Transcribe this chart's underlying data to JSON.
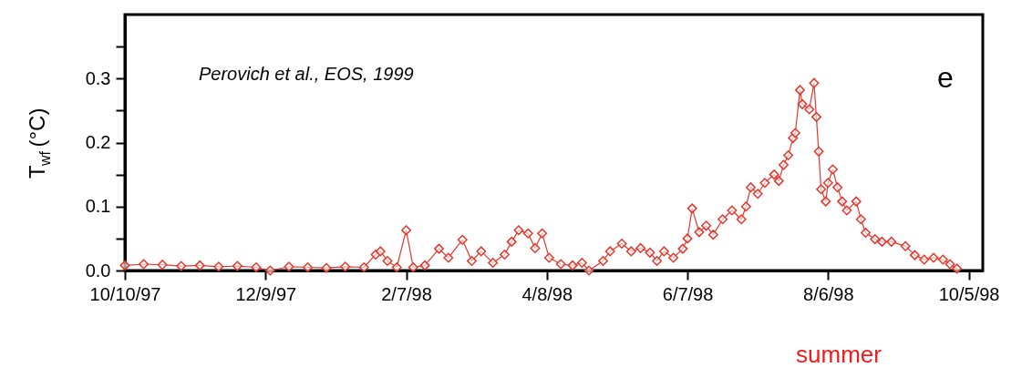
{
  "chart_data": {
    "type": "line",
    "marker": "diamond",
    "line_style": "solid",
    "grid": false,
    "ylabel": "T$_{wf}$ (°C)",
    "annotations": [
      "Perovich et al., EOS, 1999",
      "e",
      "summer"
    ],
    "xlim": [
      "1997-10-10",
      "1998-10-11"
    ],
    "xticks": [
      {
        "value": "1997-10-10",
        "label": "10/10/97"
      },
      {
        "value": "1997-12-09",
        "label": "12/9/97"
      },
      {
        "value": "1998-02-07",
        "label": "2/7/98"
      },
      {
        "value": "1998-04-08",
        "label": "4/8/98"
      },
      {
        "value": "1998-06-07",
        "label": "6/7/98"
      },
      {
        "value": "1998-08-06",
        "label": "8/6/98"
      },
      {
        "value": "1998-10-05",
        "label": "10/5/98"
      }
    ],
    "ylim": [
      0,
      0.4
    ],
    "yticks": [
      {
        "value": 0,
        "label": "0.0"
      },
      {
        "value": 0.05,
        "label": null
      },
      0.1,
      {
        "value": 0.15,
        "label": null
      },
      0.2,
      {
        "value": 0.25,
        "label": null
      },
      0.3,
      {
        "value": 0.35,
        "label": null
      }
    ],
    "x": [
      "1997-10-10",
      "1997-10-18",
      "1997-10-26",
      "1997-11-03",
      "1997-11-11",
      "1997-11-19",
      "1997-11-27",
      "1997-12-05",
      "1997-12-11",
      "1997-12-19",
      "1997-12-27",
      "1998-01-04",
      "1998-01-12",
      "1998-01-20",
      "1998-01-25",
      "1998-01-27",
      "1998-01-30",
      "1998-02-03",
      "1998-02-07",
      "1998-02-10",
      "1998-02-15",
      "1998-02-21",
      "1998-02-25",
      "1998-03-03",
      "1998-03-07",
      "1998-03-11",
      "1998-03-16",
      "1998-03-21",
      "1998-03-24",
      "1998-03-27",
      "1998-03-31",
      "1998-04-03",
      "1998-04-06",
      "1998-04-09",
      "1998-04-14",
      "1998-04-19",
      "1998-04-23",
      "1998-04-26",
      "1998-05-02",
      "1998-05-05",
      "1998-05-10",
      "1998-05-14",
      "1998-05-18",
      "1998-05-22",
      "1998-05-25",
      "1998-05-28",
      "1998-06-01",
      "1998-06-05",
      "1998-06-07",
      "1998-06-09",
      "1998-06-12",
      "1998-06-15",
      "1998-06-18",
      "1998-06-22",
      "1998-06-26",
      "1998-06-30",
      "1998-07-02",
      "1998-07-04",
      "1998-07-07",
      "1998-07-10",
      "1998-07-14",
      "1998-07-16",
      "1998-07-18",
      "1998-07-20",
      "1998-07-22",
      "1998-07-23",
      "1998-07-25",
      "1998-07-26",
      "1998-07-29",
      "1998-07-31",
      "1998-08-01",
      "1998-08-02",
      "1998-08-03",
      "1998-08-05",
      "1998-08-06",
      "1998-08-08",
      "1998-08-10",
      "1998-08-12",
      "1998-08-14",
      "1998-08-18",
      "1998-08-20",
      "1998-08-22",
      "1998-08-26",
      "1998-08-29",
      "1998-09-02",
      "1998-09-08",
      "1998-09-12",
      "1998-09-16",
      "1998-09-20",
      "1998-09-24",
      "1998-09-27",
      "1998-09-30"
    ],
    "series": [
      {
        "color": "#e3382d",
        "values": [
          0.008,
          0.01,
          0.009,
          0.007,
          0.008,
          0.006,
          0.007,
          0.005,
          0.0,
          0.006,
          0.005,
          0.004,
          0.006,
          0.005,
          0.025,
          0.03,
          0.015,
          0.005,
          0.063,
          0.005,
          0.008,
          0.034,
          0.02,
          0.048,
          0.015,
          0.03,
          0.012,
          0.025,
          0.045,
          0.063,
          0.058,
          0.035,
          0.058,
          0.02,
          0.01,
          0.008,
          0.012,
          0.0,
          0.015,
          0.03,
          0.042,
          0.03,
          0.035,
          0.028,
          0.015,
          0.03,
          0.02,
          0.034,
          0.05,
          0.097,
          0.06,
          0.07,
          0.056,
          0.08,
          0.094,
          0.08,
          0.1,
          0.13,
          0.12,
          0.137,
          0.15,
          0.14,
          0.165,
          0.18,
          0.207,
          0.215,
          0.282,
          0.26,
          0.252,
          0.293,
          0.24,
          0.186,
          0.127,
          0.108,
          0.137,
          0.158,
          0.13,
          0.108,
          0.094,
          0.108,
          0.08,
          0.059,
          0.049,
          0.045,
          0.045,
          0.038,
          0.024,
          0.017,
          0.02,
          0.017,
          0.01,
          0.003
        ]
      }
    ]
  }
}
